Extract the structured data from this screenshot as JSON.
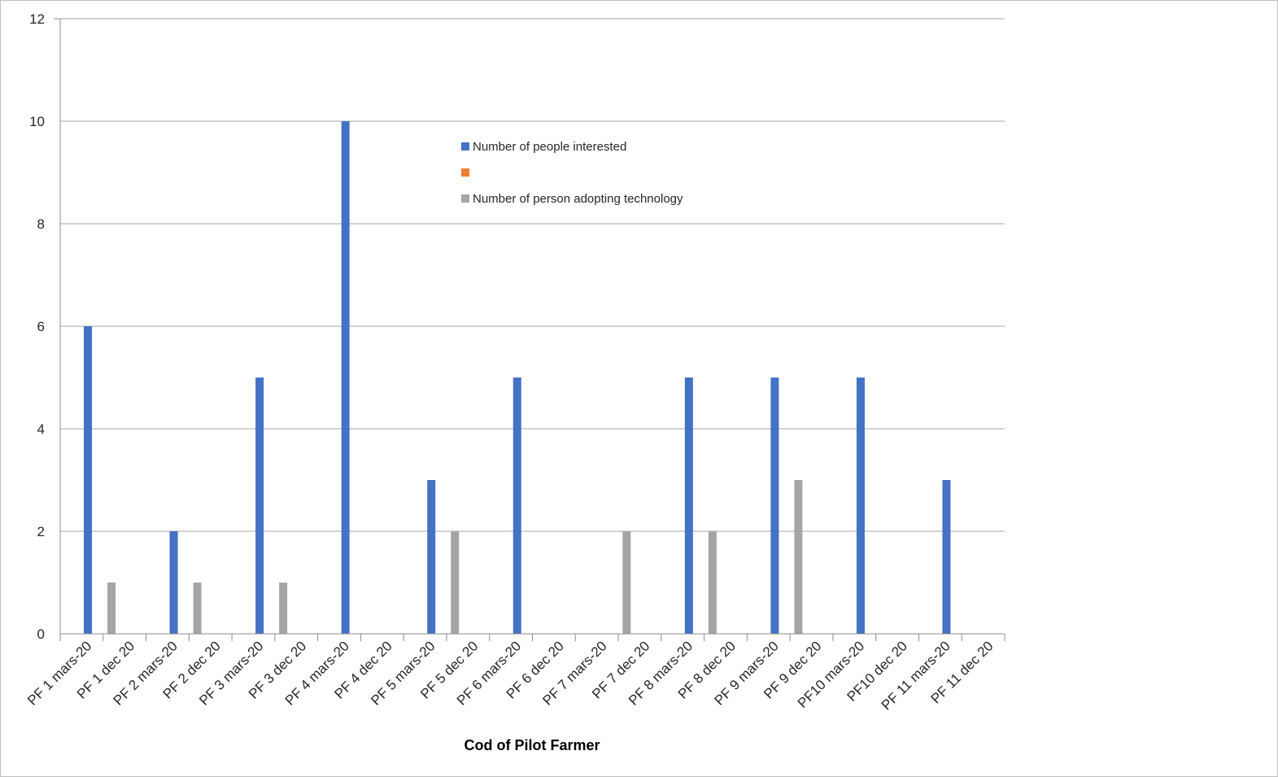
{
  "chart_data": {
    "type": "bar",
    "title": "",
    "xlabel": "Cod of Pilot Farmer",
    "ylabel": "",
    "ylim": [
      0,
      12
    ],
    "yticks": [
      0,
      2,
      4,
      6,
      8,
      10,
      12
    ],
    "grid": true,
    "legend_position": "center-top, inside plot",
    "categories": [
      "PF 1 mars-20",
      "PF 1 dec 20",
      "PF 2 mars-20",
      "PF 2 dec 20",
      "PF 3 mars-20",
      "PF 3 dec 20",
      "PF 4 mars-20",
      "PF 4 dec 20",
      "PF 5 mars-20",
      "PF 5 dec 20",
      "PF 6 mars-20",
      "PF 6 dec 20",
      "PF 7 mars-20",
      "PF 7 dec 20",
      "PF 8 mars-20",
      "PF 8 dec 20",
      "PF 9 mars-20",
      "PF 9 dec 20",
      "PF10 mars-20",
      "PF10 dec 20",
      "PF 11 mars-20",
      "PF 11 dec 20"
    ],
    "series": [
      {
        "name": "Number of people interested",
        "color": "#4472c4",
        "values": [
          6,
          0,
          2,
          0,
          5,
          0,
          10,
          0,
          3,
          0,
          5,
          0,
          0,
          0,
          5,
          0,
          5,
          0,
          5,
          0,
          3,
          0
        ]
      },
      {
        "name": "",
        "color": "#ed7d31",
        "values": [
          0,
          0,
          0,
          0,
          0,
          0,
          0,
          0,
          0,
          0,
          0,
          0,
          0,
          0,
          0,
          0,
          0,
          0,
          0,
          0,
          0,
          0
        ]
      },
      {
        "name": "Number of person adopting technology",
        "color": "#a5a5a5",
        "values": [
          0,
          1,
          0,
          1,
          0,
          1,
          0,
          0,
          0,
          2,
          0,
          0,
          0,
          2,
          0,
          2,
          0,
          3,
          0,
          0,
          0,
          0
        ]
      }
    ]
  }
}
